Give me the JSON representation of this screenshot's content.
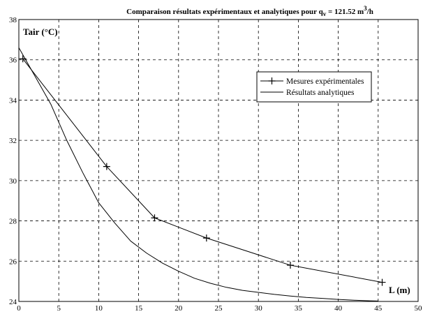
{
  "chart_data": {
    "type": "line",
    "title": {
      "prefix": "Comparaison résultats expérimentaux et analytiques pour q",
      "subscript": "v",
      "middle": " = 121.52 m",
      "superscript": "3",
      "suffix": "/h"
    },
    "xlabel": "L (m)",
    "ylabel": "Tair (°C)",
    "xlim": [
      0,
      50
    ],
    "ylim": [
      24,
      38
    ],
    "xticks": [
      0,
      5,
      10,
      15,
      20,
      25,
      30,
      35,
      40,
      45,
      50
    ],
    "yticks": [
      24,
      26,
      28,
      30,
      32,
      34,
      36,
      38
    ],
    "grid": true,
    "grid_style": "dashed",
    "legend_position": "top-right",
    "series": [
      {
        "name": "Mesures expérimentales",
        "marker": "+",
        "color": "#000000",
        "x": [
          0.5,
          11,
          17,
          23.5,
          34,
          45.5
        ],
        "y": [
          36.05,
          30.7,
          28.15,
          27.15,
          25.8,
          24.95
        ]
      },
      {
        "name": "Résultats analytiques",
        "marker": "none",
        "color": "#000000",
        "x": [
          0,
          2,
          4,
          6,
          8,
          10,
          12,
          14,
          16,
          18,
          20,
          22,
          24,
          26,
          28,
          30,
          32,
          34,
          36,
          38,
          40,
          42,
          44,
          45
        ],
        "y": [
          36.6,
          35.2,
          33.8,
          32.0,
          30.4,
          28.9,
          27.9,
          27.0,
          26.4,
          25.9,
          25.5,
          25.15,
          24.9,
          24.7,
          24.55,
          24.45,
          24.35,
          24.27,
          24.2,
          24.15,
          24.1,
          24.06,
          24.03,
          24.02
        ]
      }
    ]
  }
}
